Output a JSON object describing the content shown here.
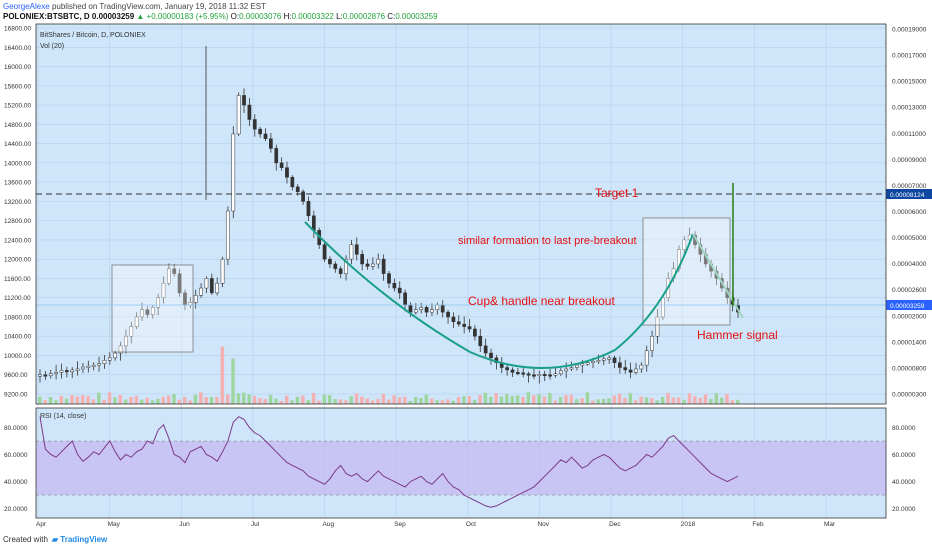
{
  "header": {
    "author": "GeorgeAlexe",
    "published": "published on TradingView.com, January 19, 2018 11:32 EST",
    "symbol": "POLONIEX:BTSBTC, D",
    "price": "0.00003259",
    "change": "▲ +0.00000183 (+5.95%)",
    "ohlc": {
      "o_label": "O:",
      "o": "0.00003076",
      "h_label": "H:",
      "h": "0.00003322",
      "l_label": "L:",
      "l": "0.00002876",
      "c_label": "C:",
      "c": "0.00003259"
    }
  },
  "chart_data": [
    {
      "type": "line",
      "title": "BitShares / Bitcoin, D, POLONIEX",
      "subtitle": "Vol (20)",
      "left_axis_ticks": [
        "16800.00",
        "16400.00",
        "16000.00",
        "15600.00",
        "15200.00",
        "14800.00",
        "14400.00",
        "14000.00",
        "13600.00",
        "13200.00",
        "12800.00",
        "12400.00",
        "12000.00",
        "11600.00",
        "11200.00",
        "10800.00",
        "10400.00",
        "10000.00",
        "9600.00",
        "9200.00"
      ],
      "right_axis_ticks": [
        "0.00019000",
        "0.00017000",
        "0.00015000",
        "0.00013000",
        "0.00011000",
        "0.00009000",
        "0.00007000",
        "0.00006000",
        "0.00005000",
        "0.00004000",
        "0.00002600",
        "0.00002000",
        "0.00001400",
        "0.00000800",
        "0.00000300"
      ],
      "last_price_label": "0.00003259",
      "target_label_value": "0.00008124",
      "x_ticks": [
        "Apr",
        "May",
        "Jun",
        "Jul",
        "Aug",
        "Sep",
        "Oct",
        "Nov",
        "Dec",
        "2018",
        "Feb",
        "Mar"
      ],
      "series": [
        {
          "values": [
            9600,
            9580,
            9620,
            9650,
            9690,
            9660,
            9700,
            9720,
            9760,
            9780,
            9800,
            9830,
            9900,
            9950,
            10050,
            10200,
            10400,
            10600,
            10800,
            10950,
            10850,
            11000,
            11200,
            11500,
            11800,
            11700,
            11300,
            11050,
            11100,
            11250,
            11400,
            11600,
            11300,
            11500,
            12000,
            13000,
            14600,
            15400,
            15200,
            14900,
            14700,
            14600,
            14500,
            14300,
            14000,
            13900,
            13700,
            13500,
            13400,
            13200,
            12900,
            12600,
            12300,
            12000,
            11900,
            11800,
            11700,
            12000,
            12300,
            12100,
            11900,
            11850,
            11900,
            12000,
            11700,
            11500,
            11400,
            11300,
            11050,
            10900,
            10950,
            11000,
            10900,
            10950,
            11050,
            10900,
            10800,
            10700,
            10650,
            10600,
            10550,
            10400,
            10200,
            10050,
            9950,
            9850,
            9750,
            9700,
            9650,
            9640,
            9620,
            9600,
            9580,
            9610,
            9600,
            9590,
            9620,
            9680,
            9720,
            9750,
            9800,
            9830,
            9850,
            9880,
            9900,
            9930,
            9950,
            9850,
            9750,
            9700,
            9650,
            9720,
            9800,
            10100,
            10400,
            10800,
            11200,
            11600,
            11800,
            12200,
            12400,
            12500,
            12300,
            12100,
            11900,
            11750,
            11600,
            11400,
            11200,
            11050,
            10900
          ]
        }
      ],
      "annotations": [
        "Target 1",
        "similar formation to last pre-breakout",
        "Cup& handle near breakout",
        "Hammer signal"
      ],
      "colors": {
        "background": "#cfe5fa",
        "up": "#3a3a3a",
        "annotation": "#e31010",
        "cup": "#1aa08a",
        "handle": "#9fd6c4",
        "target": "#2a7d10",
        "box_edge": "#7a7a7a"
      }
    },
    {
      "type": "line",
      "title": "RSI (14, close)",
      "y_ticks": [
        "80.0000",
        "60.0000",
        "40.0000",
        "20.0000"
      ],
      "ylim": [
        16,
        90
      ],
      "band": [
        30,
        70
      ],
      "series": [
        {
          "values": [
            88,
            64,
            60,
            58,
            62,
            66,
            70,
            60,
            55,
            58,
            62,
            60,
            65,
            70,
            62,
            56,
            60,
            58,
            62,
            64,
            70,
            68,
            78,
            82,
            72,
            60,
            58,
            54,
            62,
            64,
            66,
            60,
            58,
            55,
            62,
            70,
            84,
            88,
            86,
            80,
            76,
            74,
            70,
            66,
            62,
            58,
            54,
            52,
            50,
            48,
            44,
            42,
            40,
            38,
            42,
            48,
            52,
            46,
            44,
            46,
            42,
            40,
            44,
            48,
            44,
            42,
            40,
            38,
            36,
            40,
            42,
            44,
            40,
            38,
            42,
            46,
            40,
            36,
            34,
            30,
            28,
            26,
            24,
            22,
            21,
            22,
            24,
            26,
            28,
            30,
            32,
            34,
            36,
            40,
            44,
            48,
            52,
            56,
            54,
            58,
            54,
            50,
            52,
            56,
            58,
            60,
            58,
            54,
            50,
            48,
            50,
            52,
            56,
            60,
            58,
            62,
            66,
            72,
            74,
            70,
            66,
            62,
            58,
            54,
            50,
            46,
            44,
            42,
            40,
            42,
            44
          ]
        }
      ],
      "colors": {
        "line": "#7b3a8a",
        "band": "#c6b8f2"
      }
    }
  ]
}
